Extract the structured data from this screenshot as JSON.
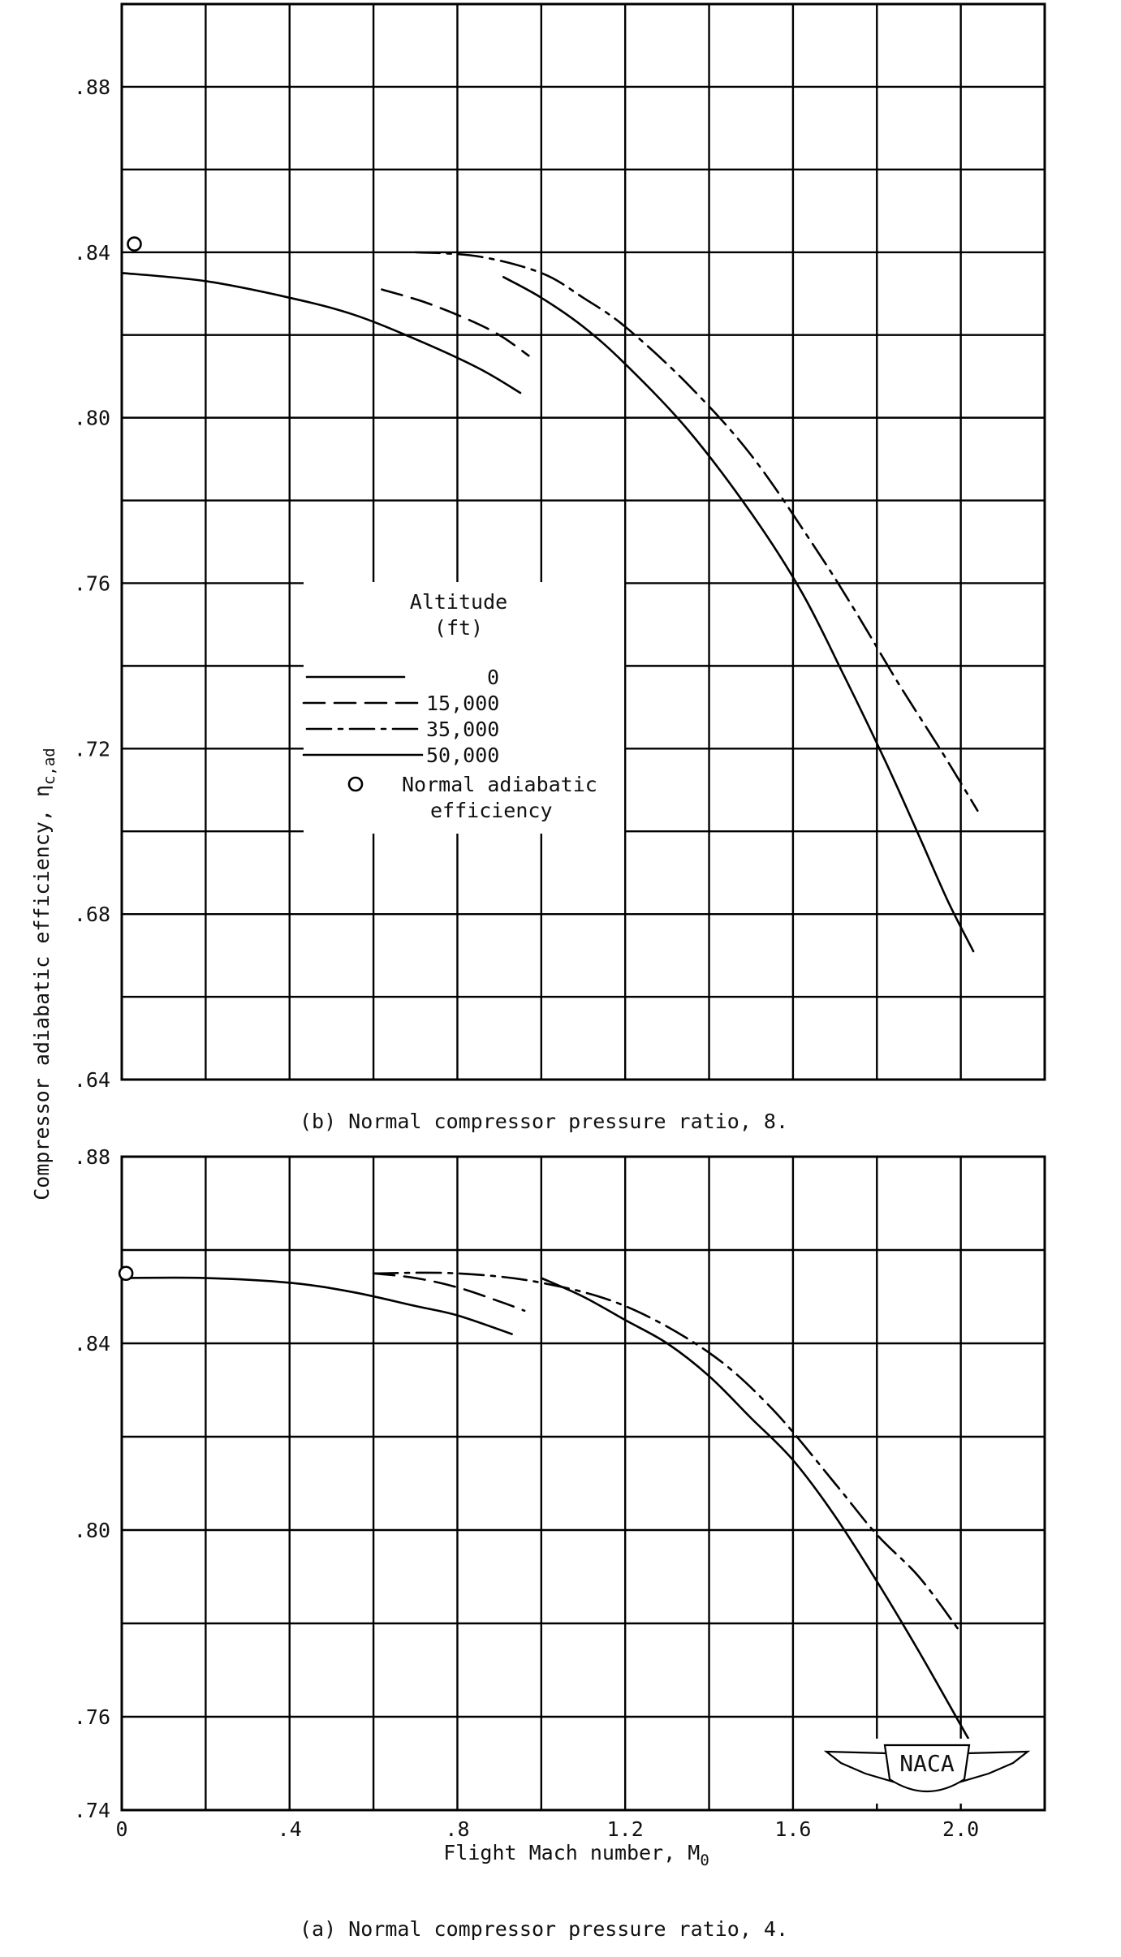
{
  "figure": {
    "ylabel": "Compressor adiabatic efficiency, η",
    "ylabel_sub": "c,ad",
    "xlabel": "Flight Mach number, M",
    "xlabel_sub": "0",
    "logo_text": "NACA"
  },
  "legend": {
    "title_line1": "Altitude",
    "title_line2": "(ft)",
    "entries": [
      "0",
      "15,000",
      "35,000",
      "50,000"
    ],
    "marker_label_line1": "Normal adiabatic",
    "marker_label_line2": "efficiency"
  },
  "chart_data": [
    {
      "type": "line",
      "caption": "(b)  Normal compressor pressure ratio, 8.",
      "xlim": [
        0,
        2.2
      ],
      "ylim": [
        0.64,
        0.9
      ],
      "x_ticks": [],
      "y_ticks": [
        ".64",
        ".68",
        ".72",
        ".76",
        ".80",
        ".84",
        ".88"
      ],
      "y_tick_values": [
        0.64,
        0.68,
        0.72,
        0.76,
        0.8,
        0.84,
        0.88
      ],
      "grid": true,
      "legend_location": "center-left",
      "marker": {
        "x": 0.03,
        "y": 0.842
      },
      "series": [
        {
          "name": "0",
          "style": "solid",
          "x": [
            0.0,
            0.2,
            0.4,
            0.55,
            0.7,
            0.85,
            0.95
          ],
          "y": [
            0.835,
            0.833,
            0.829,
            0.825,
            0.819,
            0.812,
            0.806
          ]
        },
        {
          "name": "15,000",
          "style": "dashed",
          "x": [
            0.62,
            0.72,
            0.82,
            0.9,
            0.97
          ],
          "y": [
            0.831,
            0.828,
            0.824,
            0.82,
            0.815
          ]
        },
        {
          "name": "35,000",
          "style": "dash-dot",
          "x": [
            0.7,
            0.85,
            1.0,
            1.1,
            1.2,
            1.35,
            1.5,
            1.65,
            1.75,
            1.85,
            1.95,
            2.04
          ],
          "y": [
            0.84,
            0.839,
            0.835,
            0.829,
            0.822,
            0.808,
            0.791,
            0.769,
            0.753,
            0.736,
            0.72,
            0.705
          ]
        },
        {
          "name": "50,000",
          "style": "solid",
          "x": [
            0.91,
            1.0,
            1.1,
            1.2,
            1.35,
            1.5,
            1.62,
            1.72,
            1.82,
            1.9,
            1.97,
            2.03
          ],
          "y": [
            0.834,
            0.829,
            0.822,
            0.813,
            0.797,
            0.777,
            0.758,
            0.738,
            0.717,
            0.699,
            0.683,
            0.671
          ]
        }
      ]
    },
    {
      "type": "line",
      "caption": "(a)  Normal compressor pressure ratio, 4.",
      "xlim": [
        0,
        2.2
      ],
      "ylim": [
        0.74,
        0.88
      ],
      "x_ticks": [
        "0",
        ".4",
        ".8",
        "1.2",
        "1.6",
        "2.0"
      ],
      "x_tick_values": [
        0,
        0.4,
        0.8,
        1.2,
        1.6,
        2.0
      ],
      "y_ticks": [
        ".74",
        ".76",
        ".80",
        ".84",
        ".88"
      ],
      "y_tick_values": [
        0.74,
        0.76,
        0.8,
        0.84,
        0.88
      ],
      "grid": true,
      "marker": {
        "x": 0.01,
        "y": 0.855
      },
      "series": [
        {
          "name": "0",
          "style": "solid",
          "x": [
            0.0,
            0.2,
            0.4,
            0.55,
            0.7,
            0.8,
            0.93
          ],
          "y": [
            0.854,
            0.854,
            0.853,
            0.851,
            0.848,
            0.846,
            0.842
          ]
        },
        {
          "name": "15,000",
          "style": "dashed",
          "x": [
            0.6,
            0.7,
            0.8,
            0.9,
            0.96
          ],
          "y": [
            0.855,
            0.854,
            0.852,
            0.849,
            0.847
          ]
        },
        {
          "name": "35,000",
          "style": "dash-dot",
          "x": [
            0.6,
            0.8,
            1.0,
            1.2,
            1.4,
            1.55,
            1.7,
            1.8,
            1.9,
            2.0
          ],
          "y": [
            0.855,
            0.855,
            0.853,
            0.848,
            0.838,
            0.826,
            0.81,
            0.799,
            0.79,
            0.778
          ]
        },
        {
          "name": "50,000",
          "style": "solid",
          "x": [
            1.0,
            1.1,
            1.2,
            1.3,
            1.4,
            1.5,
            1.6,
            1.7,
            1.8,
            1.9,
            2.02
          ],
          "y": [
            0.854,
            0.85,
            0.845,
            0.84,
            0.833,
            0.824,
            0.815,
            0.803,
            0.789,
            0.774,
            0.755
          ]
        }
      ]
    }
  ]
}
